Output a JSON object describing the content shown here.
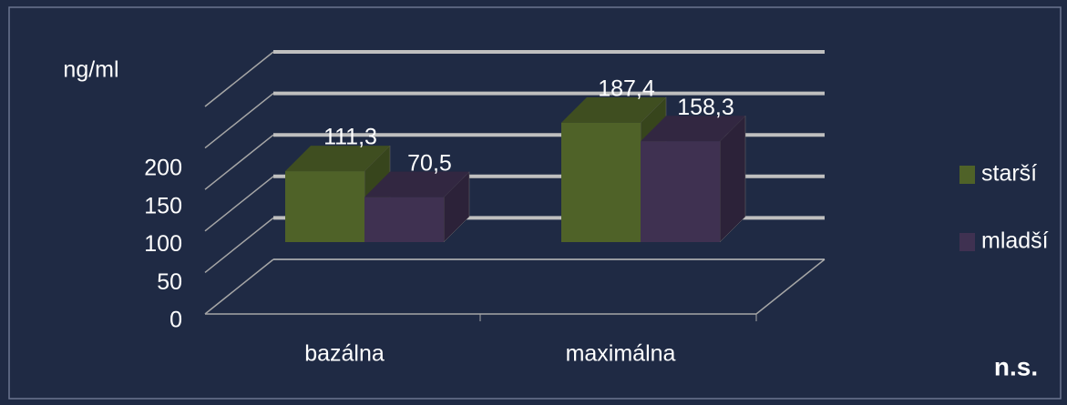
{
  "chart_data": {
    "type": "bar3d",
    "y_label": "ng/ml",
    "categories": [
      "bazálna",
      "maximálna"
    ],
    "series": [
      {
        "name": "starší",
        "color": "#4f6228",
        "values": [
          111.3,
          187.4
        ],
        "value_labels": [
          "111,3",
          "187,4"
        ]
      },
      {
        "name": "mladší",
        "color": "#3f3151",
        "values": [
          70.5,
          158.3
        ],
        "value_labels": [
          "70,5",
          "158,3"
        ]
      }
    ],
    "ylim": [
      0,
      250
    ],
    "yticks": [
      0,
      50,
      100,
      150,
      200
    ],
    "grid": true,
    "legend": "right",
    "annotation": "n.s."
  }
}
